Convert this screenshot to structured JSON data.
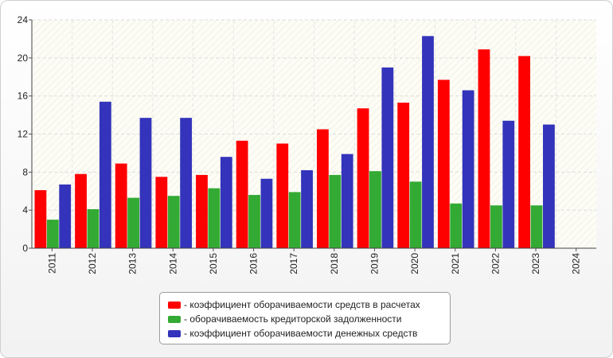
{
  "chart_data": {
    "type": "bar",
    "categories": [
      "2011",
      "2012",
      "2013",
      "2014",
      "2015",
      "2016",
      "2017",
      "2018",
      "2019",
      "2020",
      "2021",
      "2022",
      "2023",
      "2024"
    ],
    "series": [
      {
        "name": "- коэффициент оборачиваемости средств в расчетах",
        "color": "#ff0000",
        "values": [
          6.1,
          7.8,
          8.9,
          7.5,
          7.7,
          11.3,
          11.0,
          12.5,
          14.7,
          15.3,
          17.7,
          20.9,
          20.2,
          null
        ]
      },
      {
        "name": "- оборачиваемость кредиторской задолженности",
        "color": "#33aa33",
        "values": [
          3.0,
          4.1,
          5.3,
          5.5,
          6.3,
          5.6,
          5.9,
          7.7,
          8.1,
          7.0,
          4.7,
          4.5,
          4.5,
          null
        ]
      },
      {
        "name": "- коэффициент оборачиваемости денежных средств",
        "color": "#3333bb",
        "values": [
          6.7,
          15.4,
          13.7,
          13.7,
          9.6,
          7.3,
          8.2,
          9.9,
          19.0,
          22.3,
          16.6,
          13.4,
          13.0,
          null
        ]
      }
    ],
    "ylim": [
      0,
      24
    ],
    "yticks": [
      "0",
      "4",
      "8",
      "12",
      "16",
      "20",
      "24"
    ],
    "grid": true,
    "legend_position": "bottom-center",
    "title": "",
    "xlabel": "",
    "ylabel": ""
  }
}
